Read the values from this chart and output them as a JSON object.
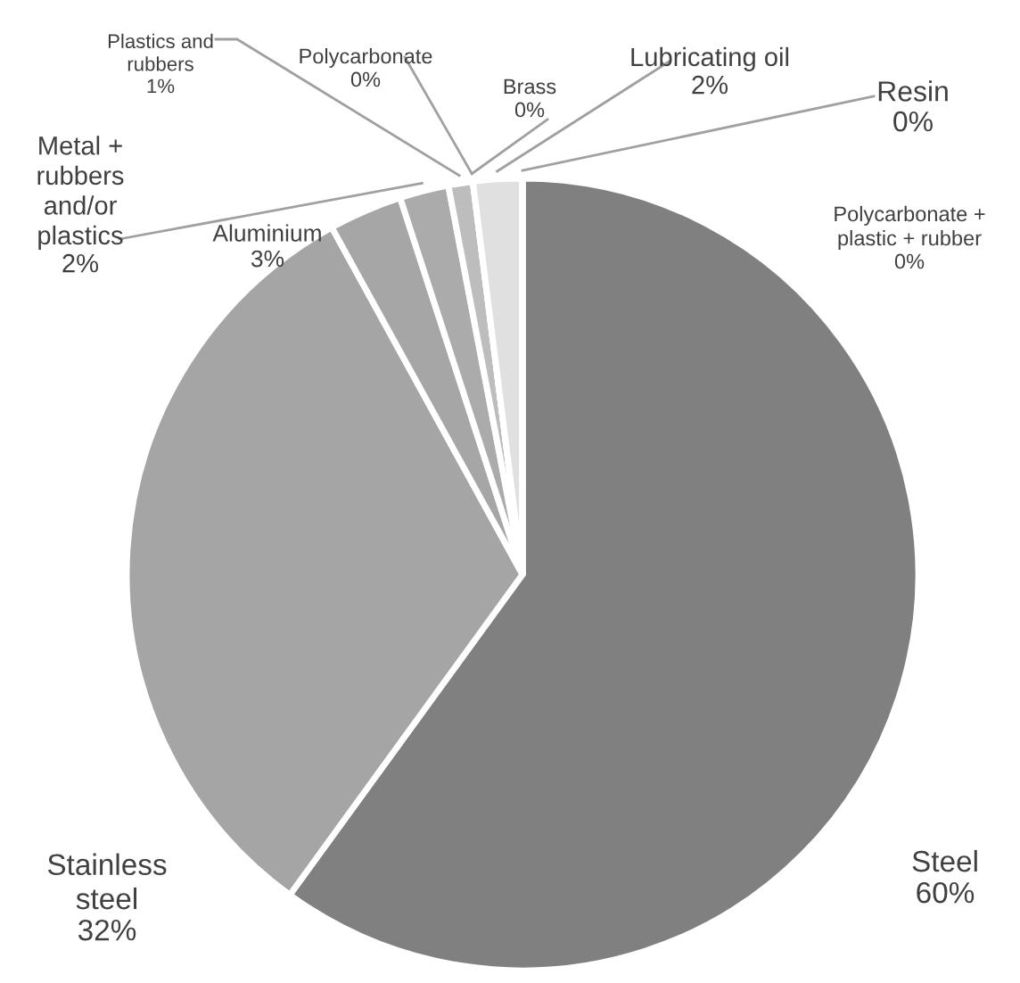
{
  "chart_data": {
    "type": "pie",
    "categories": [
      "Steel",
      "Stainless steel",
      "Aluminium",
      "Metal + rubbers and/or plastics",
      "Plastics and rubbers",
      "Polycarbonate",
      "Brass",
      "Lubricating oil",
      "Resin",
      "Polycarbonate + plastic + rubber"
    ],
    "values": [
      60,
      32,
      3,
      2,
      1,
      0,
      0,
      2,
      0,
      0
    ],
    "colors": [
      "#808080",
      "#a5a5a5",
      "#a6a6a6",
      "#ababab",
      "#bdbdbd",
      "#c8c8c8",
      "#d0d0d0",
      "#e0e0e0",
      "#e6e6e6",
      "#eeeeee"
    ],
    "value_labels": [
      "60%",
      "32%",
      "3%",
      "2%",
      "1%",
      "0%",
      "0%",
      "2%",
      "0%",
      "0%"
    ],
    "legend": false
  }
}
